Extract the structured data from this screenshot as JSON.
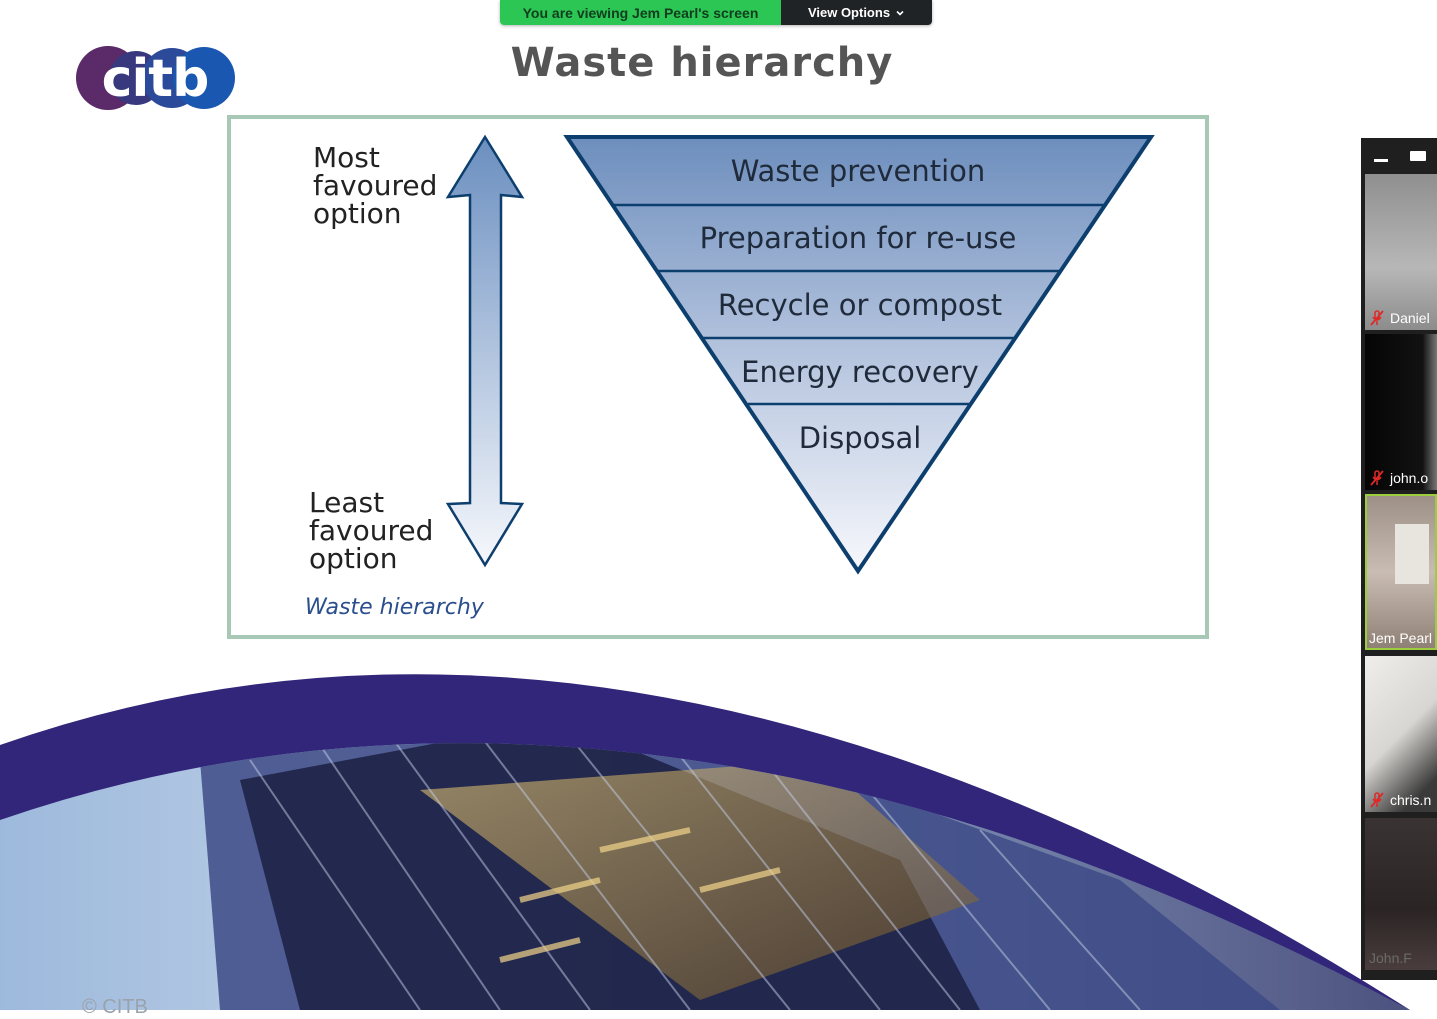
{
  "share_banner": {
    "message": "You are viewing Jem Pearl's screen",
    "options_label": "View Options"
  },
  "slide": {
    "title": "Waste hierarchy",
    "logo_text": "citb",
    "arrow_top_label": [
      "Most",
      "favoured",
      "option"
    ],
    "arrow_bottom_label": [
      "Least",
      "favoured",
      "option"
    ],
    "caption": "Waste hierarchy",
    "levels": [
      "Waste prevention",
      "Preparation for re-use",
      "Recycle or compost",
      "Energy recovery",
      "Disposal"
    ],
    "copyright": "© CITB"
  },
  "participants": [
    {
      "name": "Daniel",
      "muted": true
    },
    {
      "name": "john.o",
      "muted": true
    },
    {
      "name": "Jem Pearl",
      "muted": false
    },
    {
      "name": "chris.n",
      "muted": true
    },
    {
      "name": "John.F",
      "muted": false
    }
  ],
  "colors": {
    "banner_green": "#2cc654",
    "banner_dark": "#1f2326",
    "frame_border": "#a7c8b5",
    "pyramid_blue": "#6f8fbf",
    "pyramid_outline": "#0d3f6e",
    "arc_purple": "#32267a",
    "logo_purple": "#5b2a68",
    "logo_blue": "#1a57b0",
    "mute_red": "#e02828"
  }
}
